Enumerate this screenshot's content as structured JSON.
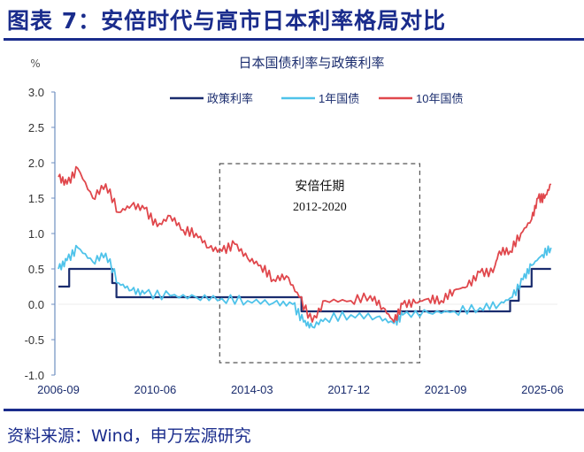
{
  "header": {
    "title": "图表 7：安倍时代与高市日本利率格局对比",
    "source": "资料来源：Wind，申万宏源研究"
  },
  "chart_data": {
    "type": "line",
    "title": "日本国债利率与政策利率",
    "ylabel": "%",
    "ylim": [
      -1.0,
      3.0
    ],
    "yticks": [
      "3.0",
      "2.5",
      "2.0",
      "1.5",
      "1.0",
      "0.5",
      "0.0",
      "-0.5",
      "-1.0"
    ],
    "xticks": [
      "2006-09",
      "2010-06",
      "2014-03",
      "2017-12",
      "2021-09",
      "2025-06"
    ],
    "grid": false,
    "legend": "top",
    "annotation": {
      "label": "安倍任期",
      "range": "2012-2020",
      "from": "2012-12",
      "to": "2020-09"
    },
    "series": [
      {
        "name": "政策利率",
        "color": "#1a2c6e",
        "points": [
          [
            "2006-09",
            0.25
          ],
          [
            "2007-02",
            0.25
          ],
          [
            "2007-02",
            0.5
          ],
          [
            "2008-10",
            0.5
          ],
          [
            "2008-10",
            0.3
          ],
          [
            "2008-12",
            0.3
          ],
          [
            "2008-12",
            0.1
          ],
          [
            "2016-02",
            0.1
          ],
          [
            "2016-02",
            -0.1
          ],
          [
            "2024-03",
            -0.1
          ],
          [
            "2024-03",
            0.05
          ],
          [
            "2024-07",
            0.05
          ],
          [
            "2024-07",
            0.25
          ],
          [
            "2025-01",
            0.25
          ],
          [
            "2025-01",
            0.5
          ],
          [
            "2025-10",
            0.5
          ]
        ]
      },
      {
        "name": "1年国债",
        "color": "#4fc3ea",
        "points": [
          [
            "2006-09",
            0.5
          ],
          [
            "2007-01",
            0.62
          ],
          [
            "2007-06",
            0.8
          ],
          [
            "2008-01",
            0.6
          ],
          [
            "2008-07",
            0.72
          ],
          [
            "2009-01",
            0.3
          ],
          [
            "2009-07",
            0.2
          ],
          [
            "2010-01",
            0.15
          ],
          [
            "2011-01",
            0.12
          ],
          [
            "2012-01",
            0.1
          ],
          [
            "2013-01",
            0.08
          ],
          [
            "2014-01",
            0.05
          ],
          [
            "2015-01",
            0.02
          ],
          [
            "2015-10",
            0.0
          ],
          [
            "2016-03",
            -0.25
          ],
          [
            "2016-07",
            -0.32
          ],
          [
            "2017-01",
            -0.2
          ],
          [
            "2018-01",
            -0.15
          ],
          [
            "2019-01",
            -0.18
          ],
          [
            "2019-09",
            -0.27
          ],
          [
            "2020-01",
            -0.15
          ],
          [
            "2021-01",
            -0.12
          ],
          [
            "2022-01",
            -0.1
          ],
          [
            "2023-01",
            -0.05
          ],
          [
            "2023-10",
            0.0
          ],
          [
            "2024-04",
            0.1
          ],
          [
            "2024-09",
            0.35
          ],
          [
            "2025-01",
            0.55
          ],
          [
            "2025-06",
            0.7
          ],
          [
            "2025-10",
            0.8
          ]
        ]
      },
      {
        "name": "10年国债",
        "color": "#e0474c",
        "points": [
          [
            "2006-09",
            1.8
          ],
          [
            "2007-01",
            1.7
          ],
          [
            "2007-06",
            1.92
          ],
          [
            "2008-01",
            1.5
          ],
          [
            "2008-07",
            1.7
          ],
          [
            "2009-01",
            1.3
          ],
          [
            "2009-07",
            1.4
          ],
          [
            "2010-01",
            1.35
          ],
          [
            "2010-07",
            1.1
          ],
          [
            "2011-01",
            1.25
          ],
          [
            "2011-07",
            1.05
          ],
          [
            "2012-01",
            1.0
          ],
          [
            "2012-07",
            0.8
          ],
          [
            "2013-01",
            0.75
          ],
          [
            "2013-07",
            0.85
          ],
          [
            "2014-01",
            0.65
          ],
          [
            "2014-07",
            0.55
          ],
          [
            "2015-01",
            0.35
          ],
          [
            "2015-07",
            0.4
          ],
          [
            "2016-01",
            0.1
          ],
          [
            "2016-07",
            -0.25
          ],
          [
            "2017-01",
            0.05
          ],
          [
            "2018-01",
            0.05
          ],
          [
            "2018-10",
            0.12
          ],
          [
            "2019-04",
            -0.05
          ],
          [
            "2019-09",
            -0.25
          ],
          [
            "2020-01",
            0.0
          ],
          [
            "2020-07",
            0.02
          ],
          [
            "2021-01",
            0.08
          ],
          [
            "2021-07",
            0.05
          ],
          [
            "2022-01",
            0.2
          ],
          [
            "2022-07",
            0.25
          ],
          [
            "2023-01",
            0.45
          ],
          [
            "2023-07",
            0.45
          ],
          [
            "2023-10",
            0.75
          ],
          [
            "2024-03",
            0.75
          ],
          [
            "2024-08",
            1.0
          ],
          [
            "2025-01",
            1.2
          ],
          [
            "2025-04",
            1.5
          ],
          [
            "2025-07",
            1.5
          ],
          [
            "2025-10",
            1.7
          ]
        ]
      }
    ]
  }
}
